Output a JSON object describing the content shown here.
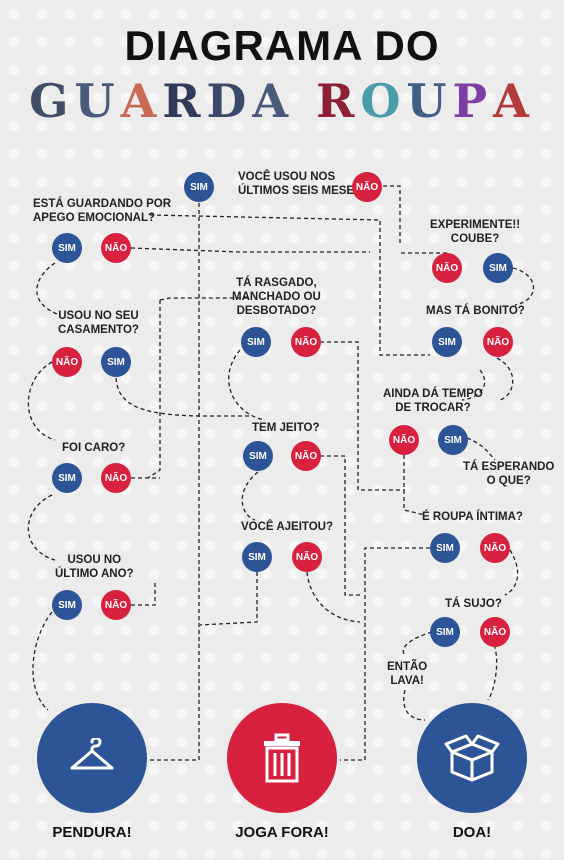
{
  "header": {
    "title": "DIAGRAMA DO",
    "subtitle_letters": [
      {
        "ch": "G",
        "color": "#3f4d66"
      },
      {
        "ch": "U",
        "color": "#4b5a78"
      },
      {
        "ch": "A",
        "color": "#c96a55"
      },
      {
        "ch": "R",
        "color": "#2f3b57"
      },
      {
        "ch": "D",
        "color": "#3b4a68"
      },
      {
        "ch": "A",
        "color": "#4a5a7a"
      },
      {
        "ch": " ",
        "color": "#000000"
      },
      {
        "ch": "R",
        "color": "#8c2035"
      },
      {
        "ch": "O",
        "color": "#4a9ca8"
      },
      {
        "ch": "U",
        "color": "#425e86"
      },
      {
        "ch": "P",
        "color": "#7d3fa6"
      },
      {
        "ch": "A",
        "color": "#b33a3a"
      }
    ]
  },
  "questions": {
    "q_six_months": "VOCÊ USOU NOS\nÚLTIMOS SEIS MESES?",
    "q_emotional": "ESTÁ GUARDANDO POR\nAPEGO EMOCIONAL?",
    "q_try": "EXPERIMENTE!!\nCOUBE?",
    "q_wedding": "USOU NO SEU\nCASAMENTO?",
    "q_torn": "TÁ RASGADO,\nMANCHADO OU\nDESBOTADO?",
    "q_pretty": "MAS TÁ BONITO?",
    "q_exchange": "AINDA DÁ TEMPO\nDE TROCAR?",
    "q_fix": "TEM JEITO?",
    "q_expensive": "FOI CARO?",
    "q_waiting": "TÁ ESPERANDO\nO QUE?",
    "q_underwear": "É ROUPA ÍNTIMA?",
    "q_fixed": "VOCÊ AJEITOU?",
    "q_last_year": "USOU NO\nÚLTIMO ANO?",
    "q_dirty": "TÁ SUJO?",
    "q_wash": "ENTÃO\nLAVA!"
  },
  "answers": {
    "yes": "SIM",
    "no": "NÃO"
  },
  "outcomes": {
    "hang": "PENDURA!",
    "trash": "JOGA FORA!",
    "donate": "DOA!"
  },
  "colors": {
    "sim": "#2d5496",
    "nao": "#d8203f"
  },
  "icons": {
    "hang": "hanger-icon",
    "trash": "trash-can-icon",
    "donate": "box-icon"
  }
}
